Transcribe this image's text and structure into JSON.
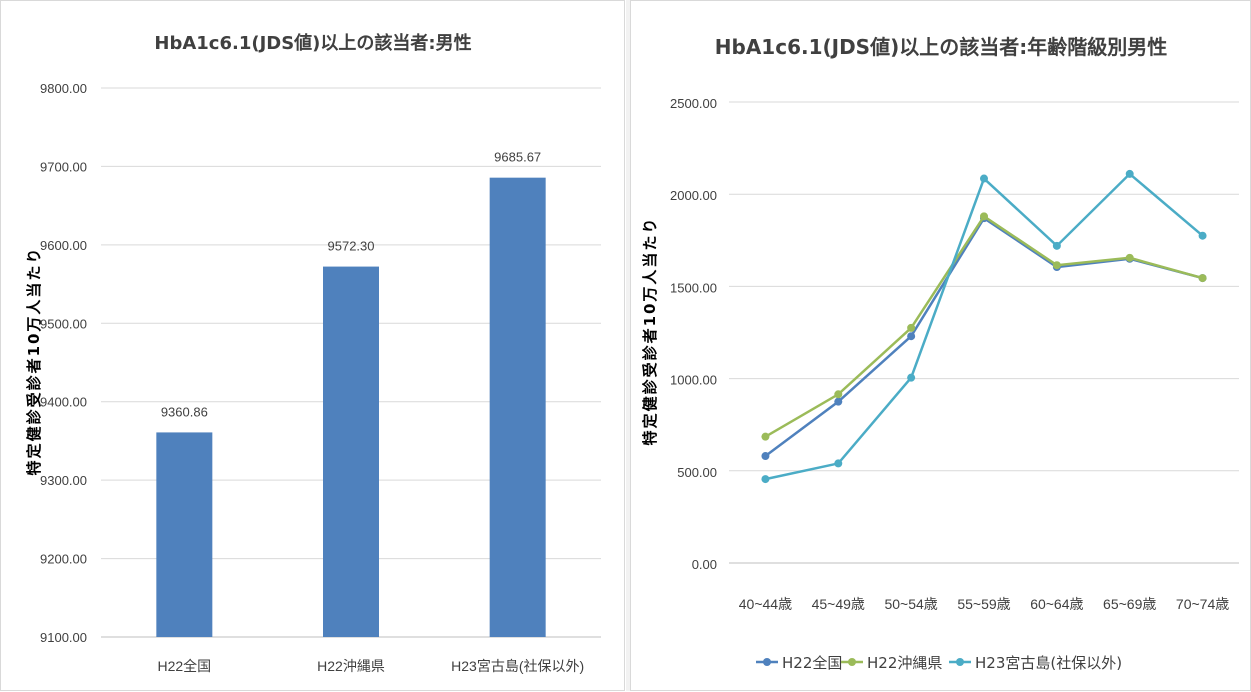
{
  "chart_data": [
    {
      "type": "bar",
      "title": "HbA1c6.1(JDS値)以上の該当者:男性",
      "ylabel": "特定健診受診者10万人当たり",
      "categories": [
        "H22全国",
        "H22沖縄県",
        "H23宮古島(社保以外)"
      ],
      "values": [
        9360.86,
        9572.3,
        9685.67
      ],
      "value_labels": [
        "9360.86",
        "9572.30",
        "9685.67"
      ],
      "ylim": [
        9100,
        9800
      ],
      "yticks": [
        "9100.00",
        "9200.00",
        "9300.00",
        "9400.00",
        "9500.00",
        "9600.00",
        "9700.00",
        "9800.00"
      ],
      "grid": true,
      "color": "#4f81bd"
    },
    {
      "type": "line",
      "title": "HbA1c6.1(JDS値)以上の該当者:年齢階級別男性",
      "ylabel": "特定健診受診者10万人当たり",
      "categories": [
        "40~44歳",
        "45~49歳",
        "50~54歳",
        "55~59歳",
        "60~64歳",
        "65~69歳",
        "70~74歳"
      ],
      "ylim": [
        0,
        2500
      ],
      "yticks": [
        "0.00",
        "500.00",
        "1000.00",
        "1500.00",
        "2000.00",
        "2500.00"
      ],
      "grid": true,
      "legend": "bottom",
      "series": [
        {
          "name": "H22全国",
          "color": "#4f81bd",
          "values": [
            580,
            875,
            1230,
            1870,
            1605,
            1650,
            1545
          ]
        },
        {
          "name": "H22沖縄県",
          "color": "#9bbb59",
          "values": [
            685,
            915,
            1275,
            1880,
            1615,
            1655,
            1545
          ]
        },
        {
          "name": "H23宮古島(社保以外)",
          "color": "#4bacc6",
          "values": [
            455,
            540,
            1005,
            2085,
            1720,
            2110,
            1775
          ]
        }
      ]
    }
  ]
}
